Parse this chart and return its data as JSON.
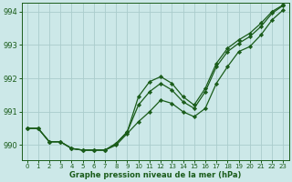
{
  "background_color": "#cce8e8",
  "grid_color": "#aacccc",
  "line_color": "#1a5c1a",
  "marker_color": "#1a5c1a",
  "xlabel": "Graphe pression niveau de la mer (hPa)",
  "ylim": [
    989.55,
    994.25
  ],
  "xlim": [
    -0.5,
    23.5
  ],
  "yticks": [
    990,
    991,
    992,
    993,
    994
  ],
  "xticks": [
    0,
    1,
    2,
    3,
    4,
    5,
    6,
    7,
    8,
    9,
    10,
    11,
    12,
    13,
    14,
    15,
    16,
    17,
    18,
    19,
    20,
    21,
    22,
    23
  ],
  "series1": [
    990.5,
    990.5,
    990.1,
    990.1,
    989.9,
    989.85,
    989.85,
    989.85,
    990.0,
    990.35,
    990.7,
    991.0,
    991.35,
    991.25,
    991.0,
    990.85,
    991.1,
    991.85,
    992.35,
    992.8,
    992.95,
    993.3,
    993.75,
    994.05
  ],
  "series2": [
    990.5,
    990.5,
    990.1,
    990.1,
    989.9,
    989.85,
    989.85,
    989.85,
    990.05,
    990.4,
    991.2,
    991.6,
    991.85,
    991.65,
    991.3,
    991.1,
    991.6,
    992.35,
    992.8,
    993.05,
    993.25,
    993.55,
    993.95,
    994.18
  ],
  "series3": [
    990.5,
    990.5,
    990.1,
    990.1,
    989.9,
    989.85,
    989.85,
    989.85,
    990.05,
    990.4,
    991.45,
    991.9,
    992.05,
    991.85,
    991.45,
    991.2,
    991.7,
    992.45,
    992.9,
    993.15,
    993.35,
    993.65,
    994.0,
    994.2
  ],
  "lw": 0.9,
  "ms": 2.2,
  "xlabel_fontsize": 6.0,
  "ytick_fontsize": 6,
  "xtick_fontsize": 5
}
